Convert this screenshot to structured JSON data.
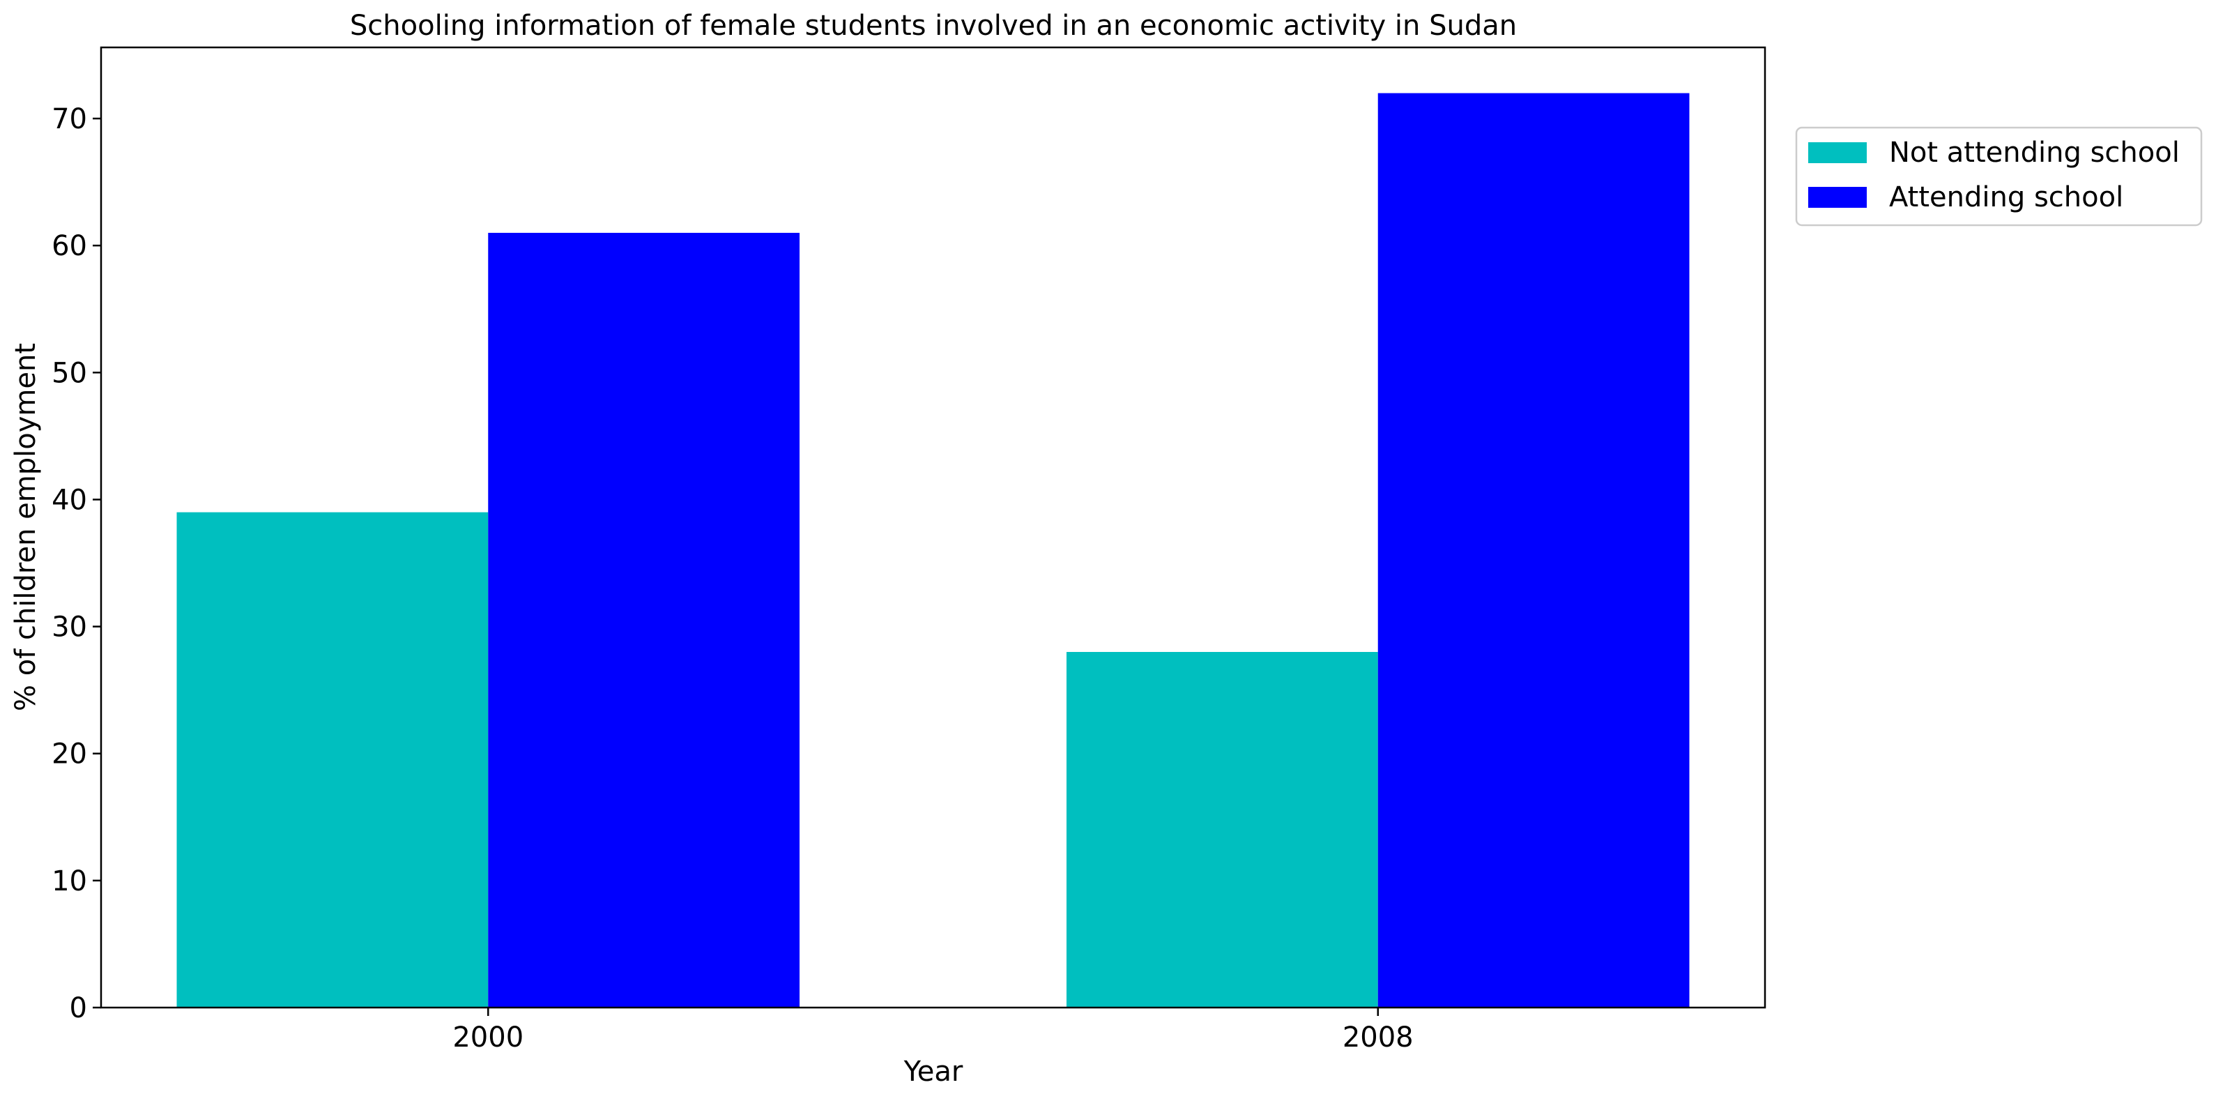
{
  "chart_data": {
    "type": "bar",
    "title": "Schooling information of female students involved in an economic activity in Sudan",
    "xlabel": "Year",
    "ylabel": "% of children employment",
    "categories": [
      "2000",
      "2008"
    ],
    "series": [
      {
        "name": "Not attending school",
        "color": "#00bfbf",
        "values": [
          39,
          28
        ]
      },
      {
        "name": "Attending school",
        "color": "#0000ff",
        "values": [
          61,
          72
        ]
      }
    ],
    "ylim": [
      0,
      75.6
    ],
    "yticks": [
      0,
      10,
      20,
      30,
      40,
      50,
      60,
      70
    ],
    "grid": false,
    "legend_position": "outside-top-right"
  }
}
